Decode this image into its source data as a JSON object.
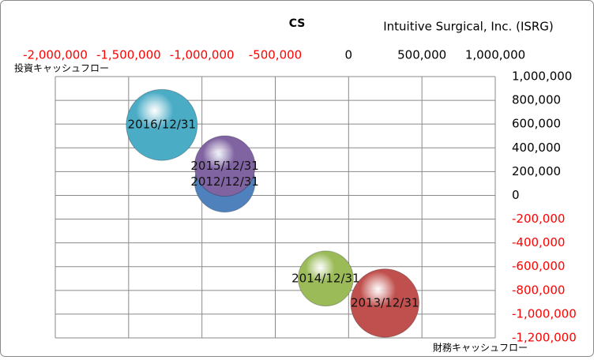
{
  "chart_data": {
    "type": "bubble",
    "title": "CS",
    "subtitle": "Intuitive Surgical, Inc. (ISRG)",
    "x_label": "投資キャッシュフロー",
    "y_label": "財務キャッシュフロー",
    "xlim": [
      -2000000,
      1000000
    ],
    "xticks": [
      {
        "value": -2000000,
        "label": "-2,000,000"
      },
      {
        "value": -1500000,
        "label": "-1,500,000"
      },
      {
        "value": -1000000,
        "label": "-1,000,000"
      },
      {
        "value": -500000,
        "label": "-500,000"
      },
      0,
      {
        "value": 500000,
        "label": "500,000"
      },
      {
        "value": 1000000,
        "label": "1,000,000"
      }
    ],
    "ylim": [
      -1200000,
      1000000
    ],
    "yticks": [
      {
        "value": 1000000,
        "label": "1,000,000"
      },
      {
        "value": 800000,
        "label": "800,000"
      },
      {
        "value": 600000,
        "label": "600,000"
      },
      {
        "value": 400000,
        "label": "400,000"
      },
      {
        "value": 200000,
        "label": "200,000"
      },
      0,
      {
        "value": -200000,
        "label": "-200,000"
      },
      {
        "value": -400000,
        "label": "-400,000"
      },
      {
        "value": -600000,
        "label": "-600,000"
      },
      {
        "value": -800000,
        "label": "-800,000"
      },
      {
        "value": -1000000,
        "label": "-1,000,000"
      },
      {
        "value": -1200000,
        "label": "-1,200,000"
      }
    ],
    "grid": true,
    "negative_tick_color": "#ff0000",
    "series": [
      {
        "name": "2012/12/31",
        "color": "#4f81bd",
        "x": [
          -844000
        ],
        "values": [
          113000
        ],
        "sizes": [
          1450
        ]
      },
      {
        "name": "2013/12/31",
        "color": "#c0504d",
        "x": [
          247000
        ],
        "values": [
          -907000
        ],
        "sizes": [
          1850
        ]
      },
      {
        "name": "2014/12/31",
        "color": "#9bbb59",
        "x": [
          -156000
        ],
        "values": [
          -700000
        ],
        "sizes": [
          1200
        ]
      },
      {
        "name": "2015/12/31",
        "color": "#8064a2",
        "x": [
          -844000
        ],
        "values": [
          247000
        ],
        "sizes": [
          1450
        ]
      },
      {
        "name": "2016/12/31",
        "color": "#4bacc6",
        "x": [
          -1274000
        ],
        "values": [
          593000
        ],
        "sizes": [
          2000
        ]
      }
    ]
  }
}
